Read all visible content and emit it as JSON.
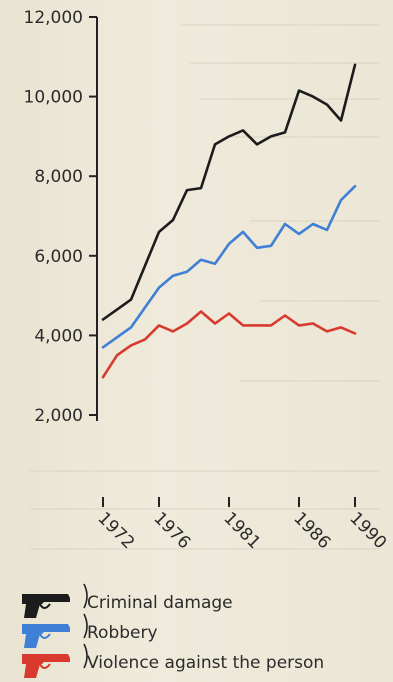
{
  "chart_data": {
    "type": "line",
    "title": "",
    "xlabel": "",
    "ylabel": "",
    "ylim": [
      0,
      12000
    ],
    "xlim": [
      1972,
      1990
    ],
    "y_ticks": [
      2000,
      4000,
      6000,
      8000,
      10000,
      12000
    ],
    "y_tick_labels": [
      "2,000",
      "4,000",
      "6,000",
      "8,000",
      "10,000",
      "12,000"
    ],
    "x_ticks": [
      1972,
      1976,
      1981,
      1986,
      1990
    ],
    "x_tick_labels": [
      "1972",
      "1976",
      "1981",
      "1986",
      "1990"
    ],
    "grid": false,
    "legend_position": "bottom-left",
    "series": [
      {
        "name": "Criminal damage",
        "color": "#1c1c1c",
        "icon": "pistol-icon",
        "points": [
          [
            1972,
            4400
          ],
          [
            1974,
            4900
          ],
          [
            1976,
            6600
          ],
          [
            1977,
            6900
          ],
          [
            1978,
            7650
          ],
          [
            1979,
            7700
          ],
          [
            1980,
            8800
          ],
          [
            1981,
            9000
          ],
          [
            1982,
            9150
          ],
          [
            1983,
            8800
          ],
          [
            1984,
            9000
          ],
          [
            1985,
            9100
          ],
          [
            1986,
            10150
          ],
          [
            1987,
            10000
          ],
          [
            1988,
            9800
          ],
          [
            1989,
            9400
          ],
          [
            1990,
            10800
          ]
        ]
      },
      {
        "name": "Robbery",
        "color": "#3f7fd6",
        "icon": "pistol-icon",
        "points": [
          [
            1972,
            3700
          ],
          [
            1974,
            4200
          ],
          [
            1976,
            5200
          ],
          [
            1977,
            5500
          ],
          [
            1978,
            5600
          ],
          [
            1979,
            5900
          ],
          [
            1980,
            5800
          ],
          [
            1981,
            6300
          ],
          [
            1982,
            6600
          ],
          [
            1983,
            6200
          ],
          [
            1984,
            6250
          ],
          [
            1985,
            6800
          ],
          [
            1986,
            6550
          ],
          [
            1987,
            6800
          ],
          [
            1988,
            6650
          ],
          [
            1989,
            7400
          ],
          [
            1990,
            7750
          ]
        ]
      },
      {
        "name": "Violence against the person",
        "color": "#d83a2e",
        "icon": "pistol-icon",
        "points": [
          [
            1972,
            2950
          ],
          [
            1973,
            3500
          ],
          [
            1974,
            3750
          ],
          [
            1975,
            3900
          ],
          [
            1976,
            4250
          ],
          [
            1977,
            4100
          ],
          [
            1978,
            4300
          ],
          [
            1979,
            4600
          ],
          [
            1980,
            4300
          ],
          [
            1981,
            4550
          ],
          [
            1982,
            4250
          ],
          [
            1983,
            4250
          ],
          [
            1984,
            4250
          ],
          [
            1985,
            4500
          ],
          [
            1986,
            4250
          ],
          [
            1987,
            4300
          ],
          [
            1988,
            4100
          ],
          [
            1989,
            4200
          ],
          [
            1990,
            4050
          ]
        ]
      }
    ]
  }
}
